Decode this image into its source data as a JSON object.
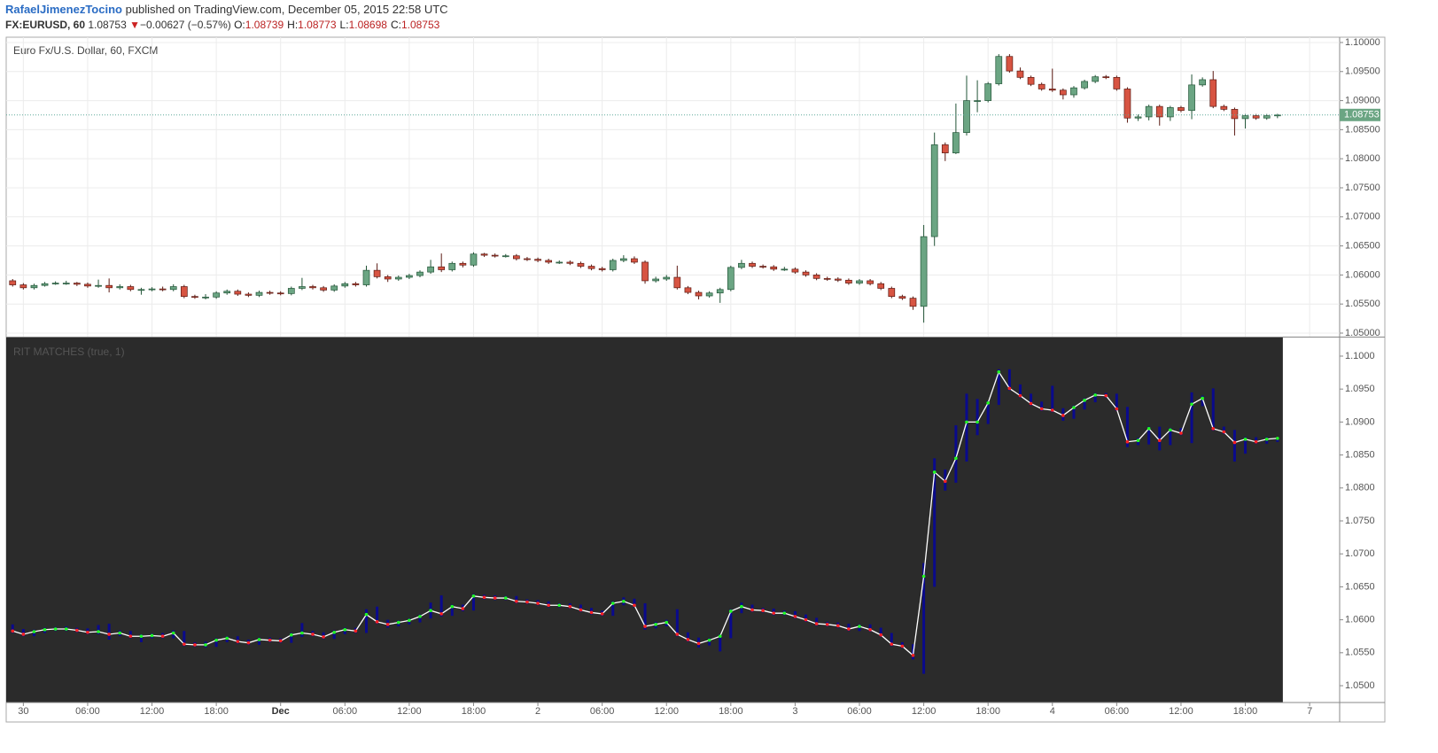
{
  "header": {
    "author": "RafaelJimenezTocino",
    "published": "published on TradingView.com, December 05, 2015 22:58 UTC",
    "symbol": "FX:EURUSD, 60",
    "last": "1.08753",
    "arrow": "▼",
    "change": "−0.00627 (−0.57%)",
    "ohlc": [
      {
        "label": "O:",
        "value": "1.08739"
      },
      {
        "label": "H:",
        "value": "1.08773"
      },
      {
        "label": "L:",
        "value": "1.08698"
      },
      {
        "label": "C:",
        "value": "1.08753"
      }
    ]
  },
  "chart_data": {
    "type": "candlestick",
    "title": "Euro Fx/U.S. Dollar, 60, FXCM",
    "colors": {
      "up": "#6ba583",
      "down": "#d75442",
      "up_border": "#225437",
      "down_border": "#5b1a13"
    },
    "xlim": [
      -0.6,
      123.8
    ],
    "xticks": [
      {
        "value": 1,
        "label": "30"
      },
      {
        "value": 7,
        "label": "06:00"
      },
      {
        "value": 13,
        "label": "12:00"
      },
      {
        "value": 19,
        "label": "18:00"
      },
      {
        "value": 25,
        "label": "Dec"
      },
      {
        "value": 31,
        "label": "06:00"
      },
      {
        "value": 37,
        "label": "12:00"
      },
      {
        "value": 43,
        "label": "18:00"
      },
      {
        "value": 49,
        "label": "2"
      },
      {
        "value": 55,
        "label": "06:00"
      },
      {
        "value": 61,
        "label": "12:00"
      },
      {
        "value": 67,
        "label": "18:00"
      },
      {
        "value": 73,
        "label": "3"
      },
      {
        "value": 79,
        "label": "06:00"
      },
      {
        "value": 85,
        "label": "12:00"
      },
      {
        "value": 91,
        "label": "18:00"
      },
      {
        "value": 97,
        "label": "4"
      },
      {
        "value": 103,
        "label": "06:00"
      },
      {
        "value": 109,
        "label": "12:00"
      },
      {
        "value": 115,
        "label": "18:00"
      },
      {
        "value": 121,
        "label": "7"
      }
    ],
    "ylim": [
      1.04939,
      1.10091
    ],
    "yticks": [
      {
        "value": 1.1,
        "label": "1.10000"
      },
      {
        "value": 1.095,
        "label": "1.09500"
      },
      {
        "value": 1.09,
        "label": "1.09000"
      },
      {
        "value": 1.085,
        "label": "1.08500"
      },
      {
        "value": 1.08,
        "label": "1.08000"
      },
      {
        "value": 1.075,
        "label": "1.07500"
      },
      {
        "value": 1.07,
        "label": "1.07000"
      },
      {
        "value": 1.065,
        "label": "1.06500"
      },
      {
        "value": 1.06,
        "label": "1.06000"
      },
      {
        "value": 1.055,
        "label": "1.05500"
      },
      {
        "value": 1.05,
        "label": "1.05000"
      }
    ],
    "last_price": 1.08753,
    "open": [
      1.059,
      1.0583,
      1.0578,
      1.0582,
      1.0585,
      1.0586,
      1.0586,
      1.0584,
      1.0581,
      1.0582,
      1.0578,
      1.058,
      1.0575,
      1.0575,
      1.0576,
      1.0575,
      1.058,
      1.0563,
      1.0562,
      1.0562,
      1.0569,
      1.0572,
      1.0567,
      1.0565,
      1.057,
      1.0569,
      1.0568,
      1.0577,
      1.058,
      1.0578,
      1.0574,
      1.0581,
      1.0585,
      1.0583,
      1.0608,
      1.0597,
      1.0593,
      1.0596,
      1.0599,
      1.0605,
      1.0614,
      1.0609,
      1.062,
      1.0617,
      1.0636,
      1.0634,
      1.0633,
      1.0633,
      1.0628,
      1.0627,
      1.0625,
      1.0622,
      1.0622,
      1.062,
      1.0615,
      1.0611,
      1.0609,
      1.0625,
      1.0628,
      1.0622,
      1.059,
      1.0593,
      1.0596,
      1.0578,
      1.057,
      1.0564,
      1.0569,
      1.0575,
      1.0613,
      1.062,
      1.0615,
      1.0614,
      1.061,
      1.061,
      1.0605,
      1.06,
      1.0594,
      1.0593,
      1.0591,
      1.0586,
      1.059,
      1.0585,
      1.0577,
      1.0563,
      1.056,
      1.0546,
      1.0666,
      1.0824,
      1.081,
      1.0845,
      1.09,
      1.09,
      1.0929,
      1.0976,
      1.0951,
      1.094,
      1.0928,
      1.092,
      1.0918,
      1.091,
      1.0922,
      1.0933,
      1.0941,
      1.094,
      1.092,
      1.087,
      1.0872,
      1.089,
      1.0872,
      1.0888,
      1.0883,
      1.0927,
      1.0936,
      1.089,
      1.0885,
      1.0869,
      1.0874,
      1.087,
      1.08739
    ],
    "high": [
      1.0593,
      1.0586,
      1.0585,
      1.0588,
      1.0589,
      1.059,
      1.0588,
      1.0587,
      1.0592,
      1.0594,
      1.0584,
      1.0583,
      1.0578,
      1.0579,
      1.058,
      1.0584,
      1.0583,
      1.0566,
      1.0567,
      1.0572,
      1.0575,
      1.0575,
      1.057,
      1.0573,
      1.0573,
      1.0572,
      1.058,
      1.0595,
      1.0583,
      1.0581,
      1.0584,
      1.0588,
      1.0588,
      1.0616,
      1.062,
      1.06,
      1.0599,
      1.0602,
      1.0608,
      1.0626,
      1.0637,
      1.0623,
      1.0623,
      1.0639,
      1.0638,
      1.0637,
      1.0636,
      1.0636,
      1.0631,
      1.063,
      1.0628,
      1.0625,
      1.0625,
      1.0623,
      1.0618,
      1.0614,
      1.0628,
      1.0634,
      1.0632,
      1.0625,
      1.0597,
      1.06,
      1.0616,
      1.0581,
      1.0573,
      1.0572,
      1.0578,
      1.0616,
      1.0626,
      1.0623,
      1.0618,
      1.0617,
      1.0614,
      1.0613,
      1.0608,
      1.0603,
      1.0597,
      1.0596,
      1.0594,
      1.0593,
      1.0593,
      1.0588,
      1.058,
      1.0566,
      1.0563,
      1.0686,
      1.0845,
      1.0828,
      1.0895,
      1.0943,
      1.0935,
      1.0932,
      1.098,
      1.098,
      1.0957,
      1.0943,
      1.0931,
      1.0955,
      1.0921,
      1.0925,
      1.0936,
      1.0944,
      1.0944,
      1.0943,
      1.0923,
      1.0876,
      1.0893,
      1.0893,
      1.0891,
      1.0891,
      1.0945,
      1.094,
      1.0951,
      1.0893,
      1.0888,
      1.0877,
      1.0877,
      1.0877,
      1.08773
    ],
    "low": [
      1.058,
      1.0575,
      1.0575,
      1.058,
      1.0583,
      1.0583,
      1.0581,
      1.0578,
      1.0578,
      1.057,
      1.0575,
      1.0572,
      1.0566,
      1.0572,
      1.0572,
      1.0572,
      1.056,
      1.0559,
      1.0558,
      1.0559,
      1.0566,
      1.0564,
      1.0562,
      1.0562,
      1.0566,
      1.0565,
      1.0565,
      1.0574,
      1.0575,
      1.0571,
      1.0571,
      1.0578,
      1.058,
      1.058,
      1.0594,
      1.0588,
      1.059,
      1.0593,
      1.0596,
      1.0602,
      1.0605,
      1.0606,
      1.0613,
      1.0614,
      1.0631,
      1.063,
      1.063,
      1.0625,
      1.0624,
      1.0622,
      1.0619,
      1.0619,
      1.0617,
      1.0612,
      1.0608,
      1.0606,
      1.0606,
      1.0622,
      1.0619,
      1.0585,
      1.0587,
      1.059,
      1.0575,
      1.0567,
      1.0558,
      1.0561,
      1.0552,
      1.0572,
      1.061,
      1.0612,
      1.0611,
      1.0607,
      1.0607,
      1.0602,
      1.0597,
      1.0591,
      1.059,
      1.0588,
      1.0583,
      1.0583,
      1.0582,
      1.0574,
      1.056,
      1.0557,
      1.054,
      1.0518,
      1.065,
      1.0796,
      1.0808,
      1.084,
      1.088,
      1.0897,
      1.0926,
      1.0948,
      1.0937,
      1.0925,
      1.0917,
      1.0915,
      1.0902,
      1.0905,
      1.0919,
      1.093,
      1.0937,
      1.0917,
      1.0862,
      1.0865,
      1.0866,
      1.0857,
      1.0865,
      1.088,
      1.0868,
      1.0924,
      1.0887,
      1.0882,
      1.084,
      1.0852,
      1.0867,
      1.0867,
      1.08698
    ],
    "close": [
      1.0583,
      1.0578,
      1.0582,
      1.0585,
      1.0586,
      1.0586,
      1.0584,
      1.0581,
      1.0582,
      1.0578,
      1.058,
      1.0575,
      1.0575,
      1.0576,
      1.0575,
      1.058,
      1.0563,
      1.0562,
      1.0562,
      1.0569,
      1.0572,
      1.0567,
      1.0565,
      1.057,
      1.0569,
      1.0568,
      1.0577,
      1.058,
      1.0578,
      1.0574,
      1.0581,
      1.0585,
      1.0583,
      1.0608,
      1.0597,
      1.0593,
      1.0596,
      1.0599,
      1.0605,
      1.0614,
      1.0609,
      1.062,
      1.0617,
      1.0636,
      1.0634,
      1.0633,
      1.0633,
      1.0628,
      1.0627,
      1.0625,
      1.0622,
      1.0622,
      1.062,
      1.0615,
      1.0611,
      1.0609,
      1.0625,
      1.0628,
      1.0622,
      1.059,
      1.0593,
      1.0596,
      1.0578,
      1.057,
      1.0564,
      1.0569,
      1.0575,
      1.0613,
      1.062,
      1.0615,
      1.0614,
      1.061,
      1.061,
      1.0605,
      1.06,
      1.0594,
      1.0593,
      1.0591,
      1.0586,
      1.059,
      1.0585,
      1.0577,
      1.0563,
      1.056,
      1.0546,
      1.0666,
      1.0824,
      1.081,
      1.0845,
      1.09,
      1.09,
      1.0929,
      1.0976,
      1.0951,
      1.094,
      1.0928,
      1.092,
      1.0918,
      1.091,
      1.0922,
      1.0933,
      1.0941,
      1.094,
      1.092,
      1.087,
      1.0872,
      1.089,
      1.0872,
      1.0888,
      1.0883,
      1.0927,
      1.0936,
      1.089,
      1.0885,
      1.0869,
      1.0874,
      1.087,
      1.0874,
      1.08753
    ],
    "indicator": {
      "title": "RIT MATCHES (true, 1)",
      "bar_color": "#0a0a8c",
      "line_color": "#ffffff",
      "up_dot": "#22ff22",
      "down_dot": "#ff2222",
      "background": "#2b2b2b",
      "ylim": [
        1.04745,
        1.10282
      ],
      "yticks": [
        {
          "value": 1.1,
          "label": "1.1000"
        },
        {
          "value": 1.095,
          "label": "1.0950"
        },
        {
          "value": 1.09,
          "label": "1.0900"
        },
        {
          "value": 1.085,
          "label": "1.0850"
        },
        {
          "value": 1.08,
          "label": "1.0800"
        },
        {
          "value": 1.075,
          "label": "1.0750"
        },
        {
          "value": 1.07,
          "label": "1.0700"
        },
        {
          "value": 1.065,
          "label": "1.0650"
        },
        {
          "value": 1.06,
          "label": "1.0600"
        },
        {
          "value": 1.055,
          "label": "1.0550"
        },
        {
          "value": 1.05,
          "label": "1.0500"
        }
      ]
    }
  }
}
